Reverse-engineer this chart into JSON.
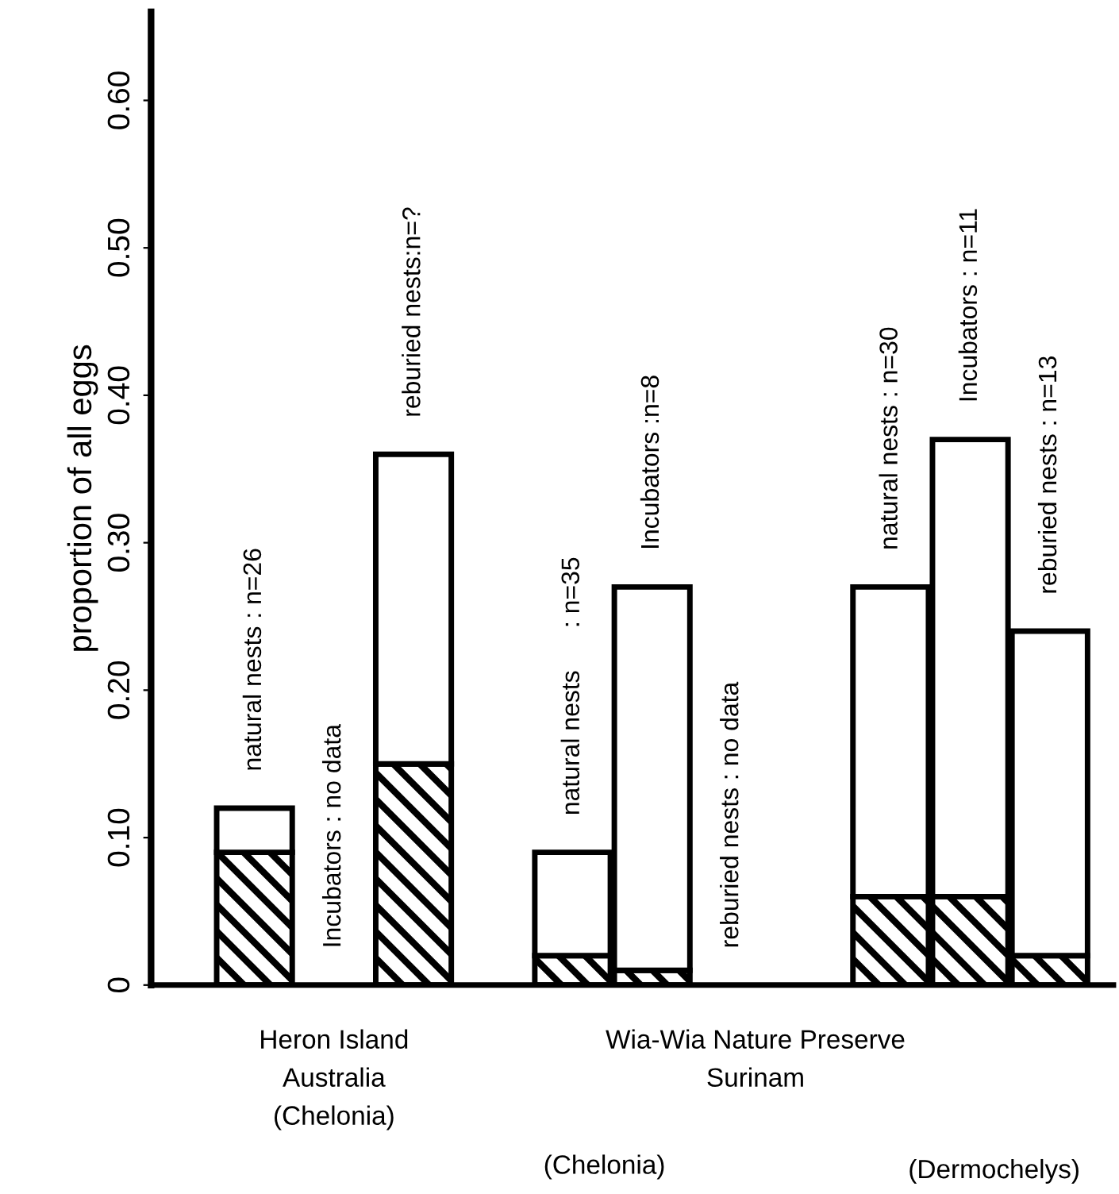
{
  "chart_data": {
    "type": "bar",
    "stacked": true,
    "ylabel": "proportion of all eggs",
    "categories": [
      "natural nests : n=26",
      "Incubators : no data",
      "reburied nests:n=?",
      null,
      "natural nests      : n=35",
      "Incubators :n=8",
      "reburied nests : no data",
      null,
      "natural nests : n=30",
      "Incubators : n=11",
      "reburied nests : n=13"
    ],
    "series": [
      {
        "color": "#000000",
        "values": [
          0.09,
          null,
          0.15,
          null,
          0.02,
          0.01,
          null,
          null,
          0.06,
          0.06,
          0.02
        ]
      },
      {
        "color": "#ffffff",
        "values": [
          0.03,
          null,
          0.21,
          null,
          0.07,
          0.26,
          null,
          null,
          0.21,
          0.31,
          0.22
        ]
      }
    ],
    "ylim": [
      0,
      0.66
    ],
    "yticks": [
      0,
      {
        "value": 0.1,
        "label": "0.10"
      },
      {
        "value": 0.2,
        "label": "0.20"
      },
      {
        "value": 0.3,
        "label": "0.30"
      },
      {
        "value": 0.4,
        "label": "0.40"
      },
      {
        "value": 0.5,
        "label": "0.50"
      },
      {
        "value": 0.6,
        "label": "0.60"
      }
    ],
    "annotations": [
      "Heron Island\nAustralia\n(Chelonia)",
      "Wia-Wia Nature Preserve\nSurinam",
      "(Chelonia)",
      "(Dermochelys)"
    ],
    "grid": false,
    "legend": false
  }
}
